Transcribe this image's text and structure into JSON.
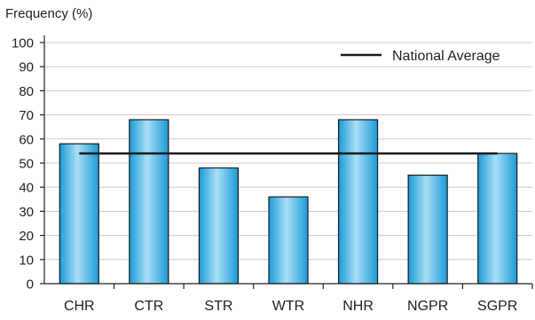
{
  "chart_data": {
    "type": "bar",
    "title": "",
    "ylabel": "Frequency (%)",
    "xlabel": "",
    "categories": [
      "CHR",
      "CTR",
      "STR",
      "WTR",
      "NHR",
      "NGPR",
      "SGPR"
    ],
    "values": [
      58,
      68,
      48,
      36,
      68,
      45,
      54
    ],
    "ylim": [
      0,
      100
    ],
    "yticks": [
      0,
      10,
      20,
      30,
      40,
      50,
      60,
      70,
      80,
      90,
      100
    ],
    "reference_line": {
      "label": "National Average",
      "value": 54
    },
    "grid": true,
    "legend_position": "top-right",
    "colors": {
      "bar_dark": "#1a9bd7",
      "bar_light": "#a9def6",
      "bar_stroke": "#1a1a1a",
      "grid": "#cccccc",
      "reference_line": "#1a1a1a"
    }
  }
}
